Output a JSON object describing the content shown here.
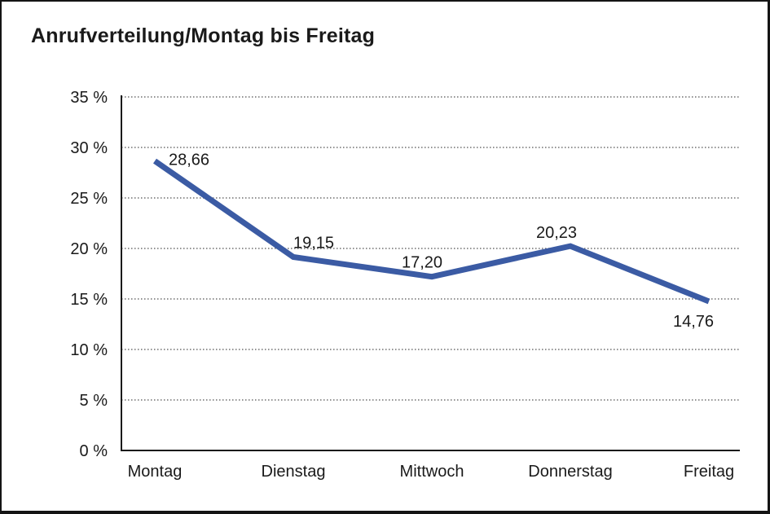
{
  "window": {
    "title": "Anrufverteilung/Montag bis Freitag"
  },
  "colors": {
    "line": "#3b5ba4",
    "axis": "#1a1a1a",
    "grid": "#6e6e6e",
    "text": "#1a1a1a"
  },
  "chart_data": {
    "type": "line",
    "title": "Anrufverteilung/Montag bis Freitag",
    "categories": [
      "Montag",
      "Dienstag",
      "Mittwoch",
      "Donnerstag",
      "Freitag"
    ],
    "values": [
      28.66,
      19.15,
      17.2,
      20.23,
      14.76
    ],
    "value_labels": [
      "28,66",
      "19,15",
      "17,20",
      "20,23",
      "14,76"
    ],
    "xlabel": "",
    "ylabel": "",
    "ylim": [
      0,
      35
    ],
    "y_ticks": [
      0,
      5,
      10,
      15,
      20,
      25,
      30,
      35
    ],
    "y_tick_labels": [
      "0 %",
      "5 %",
      "10 %",
      "15 %",
      "20 %",
      "25 %",
      "30 %",
      "35 %"
    ],
    "grid": "horizontal-dotted",
    "legend_position": "none",
    "markers": "none"
  }
}
